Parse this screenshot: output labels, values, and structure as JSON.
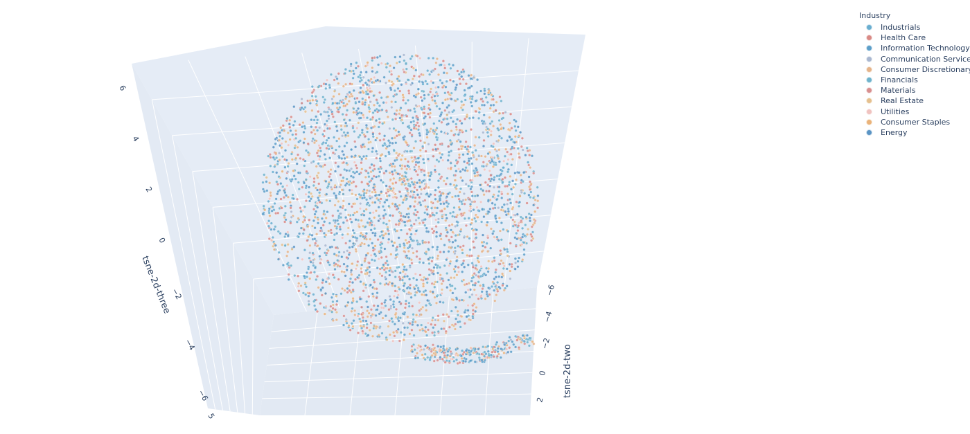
{
  "chart_data": {
    "type": "scatter",
    "dimensions": 3,
    "legend": {
      "title": "Industry",
      "placement": "top-right",
      "entries": [
        {
          "name": "Industrials",
          "color": "#6aaed0"
        },
        {
          "name": "Health Care",
          "color": "#d98a86"
        },
        {
          "name": "Information Technology",
          "color": "#5d9fc9"
        },
        {
          "name": "Communication Services",
          "color": "#a9b7d0"
        },
        {
          "name": "Consumer Discretionary",
          "color": "#e5b48a"
        },
        {
          "name": "Financials",
          "color": "#6fb3cc"
        },
        {
          "name": "Materials",
          "color": "#d88f8f"
        },
        {
          "name": "Real Estate",
          "color": "#e5c08e"
        },
        {
          "name": "Utilities",
          "color": "#f0c3c0"
        },
        {
          "name": "Consumer Staples",
          "color": "#eab37a"
        },
        {
          "name": "Energy",
          "color": "#5a94c4"
        }
      ]
    },
    "axes": {
      "vertical": {
        "title": "tsne-2d-three",
        "ticks": [
          "6",
          "4",
          "2",
          "0",
          "−2",
          "−4",
          "−6"
        ],
        "range": [
          -7,
          7
        ]
      },
      "depth": {
        "title": "tsne-2d-two",
        "ticks": [
          "−6",
          "−4",
          "−2",
          "0",
          "2"
        ],
        "range": [
          -8,
          3
        ]
      },
      "partial_tick": "5"
    },
    "grid": true,
    "background": "#e5ecf6",
    "point_count_estimate": 9000
  }
}
